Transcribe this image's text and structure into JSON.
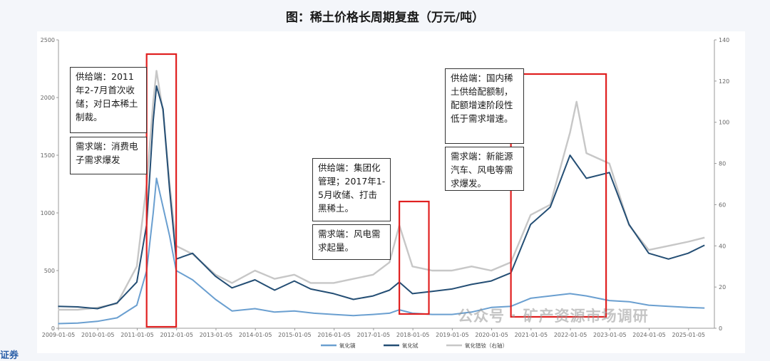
{
  "title": "图：稀土价格长周期复盘（万元/吨）",
  "watermark": "公众号 · 矿产资源市场调研",
  "edge_text": "证券",
  "annotations": [
    {
      "supply": "供给端：2011年2-7月首次收储；对日本稀土制裁。",
      "demand": "需求端：消费电子需求爆发"
    },
    {
      "supply": "供给端：集团化管理；2017年1-5月收储、打击黑稀土。",
      "demand": "需求端：风电需求起量。"
    },
    {
      "supply": "供给端：国内稀土供给配额制，配额增速阶段性低于需求增速。",
      "demand": "需求端：新能源汽车、风电等需求爆发。"
    }
  ],
  "colors": {
    "highlight": "#e02020",
    "series_1": "#6a9fd0",
    "series_2": "#244e74",
    "series_3": "#c7c7c7"
  },
  "chart_data": {
    "type": "line",
    "x_start": "2009-01-05",
    "x_ticks": [
      "2009-01-05",
      "2010-01-05",
      "2011-01-05",
      "2012-01-05",
      "2013-01-05",
      "2014-01-05",
      "2015-01-05",
      "2016-01-05",
      "2017-01-05",
      "2018-01-05",
      "2019-01-05",
      "2020-01-05",
      "2021-01-05",
      "2022-01-05",
      "2023-01-05",
      "2024-01-05",
      "2025-01-05"
    ],
    "y_left": {
      "min": 0,
      "max": 2500,
      "ticks": [
        0,
        500,
        1000,
        1500,
        2000,
        2500
      ]
    },
    "y_right": {
      "min": 0,
      "max": 140,
      "ticks": [
        0,
        20,
        40,
        60,
        80,
        100,
        120,
        140
      ]
    },
    "highlight_periods": [
      [
        "2011-04",
        "2012-01"
      ],
      [
        "2017-09",
        "2018-06"
      ],
      [
        "2020-07",
        "2022-12"
      ]
    ],
    "series": [
      {
        "name": "氧化镝",
        "axis": "left",
        "points": [
          [
            "2009-01",
            40
          ],
          [
            "2009-07",
            45
          ],
          [
            "2010-01",
            60
          ],
          [
            "2010-07",
            90
          ],
          [
            "2011-01",
            200
          ],
          [
            "2011-04",
            500
          ],
          [
            "2011-06",
            1000
          ],
          [
            "2011-07",
            1300
          ],
          [
            "2011-09",
            1050
          ],
          [
            "2011-11",
            800
          ],
          [
            "2012-01",
            500
          ],
          [
            "2012-06",
            420
          ],
          [
            "2013-01",
            250
          ],
          [
            "2013-06",
            150
          ],
          [
            "2014-01",
            170
          ],
          [
            "2014-07",
            140
          ],
          [
            "2015-01",
            150
          ],
          [
            "2015-07",
            130
          ],
          [
            "2016-01",
            120
          ],
          [
            "2016-07",
            110
          ],
          [
            "2017-01",
            120
          ],
          [
            "2017-06",
            130
          ],
          [
            "2017-09",
            160
          ],
          [
            "2018-01",
            130
          ],
          [
            "2018-07",
            120
          ],
          [
            "2019-01",
            120
          ],
          [
            "2019-07",
            140
          ],
          [
            "2020-01",
            180
          ],
          [
            "2020-07",
            190
          ],
          [
            "2021-01",
            260
          ],
          [
            "2021-07",
            280
          ],
          [
            "2022-01",
            300
          ],
          [
            "2022-06",
            280
          ],
          [
            "2023-01",
            240
          ],
          [
            "2023-07",
            230
          ],
          [
            "2024-01",
            200
          ],
          [
            "2024-07",
            190
          ],
          [
            "2025-01",
            180
          ],
          [
            "2025-06",
            175
          ]
        ]
      },
      {
        "name": "氧化铽",
        "axis": "left",
        "points": [
          [
            "2009-01",
            190
          ],
          [
            "2009-07",
            185
          ],
          [
            "2010-01",
            170
          ],
          [
            "2010-07",
            220
          ],
          [
            "2011-01",
            400
          ],
          [
            "2011-04",
            900
          ],
          [
            "2011-06",
            1800
          ],
          [
            "2011-07",
            2100
          ],
          [
            "2011-09",
            1900
          ],
          [
            "2011-11",
            1200
          ],
          [
            "2012-01",
            600
          ],
          [
            "2012-06",
            650
          ],
          [
            "2013-01",
            450
          ],
          [
            "2013-06",
            350
          ],
          [
            "2014-01",
            420
          ],
          [
            "2014-07",
            330
          ],
          [
            "2015-01",
            410
          ],
          [
            "2015-06",
            340
          ],
          [
            "2016-01",
            300
          ],
          [
            "2016-07",
            250
          ],
          [
            "2017-01",
            280
          ],
          [
            "2017-06",
            330
          ],
          [
            "2017-09",
            400
          ],
          [
            "2018-01",
            300
          ],
          [
            "2018-07",
            320
          ],
          [
            "2019-01",
            340
          ],
          [
            "2019-07",
            380
          ],
          [
            "2020-01",
            410
          ],
          [
            "2020-07",
            480
          ],
          [
            "2021-01",
            900
          ],
          [
            "2021-07",
            1050
          ],
          [
            "2022-01",
            1500
          ],
          [
            "2022-06",
            1300
          ],
          [
            "2023-01",
            1350
          ],
          [
            "2023-07",
            900
          ],
          [
            "2024-01",
            650
          ],
          [
            "2024-07",
            600
          ],
          [
            "2025-01",
            650
          ],
          [
            "2025-06",
            720
          ]
        ]
      },
      {
        "name": "氧化镨钕（右轴）",
        "axis": "right",
        "points": [
          [
            "2009-01",
            9
          ],
          [
            "2009-07",
            9
          ],
          [
            "2010-01",
            10
          ],
          [
            "2010-07",
            12
          ],
          [
            "2011-01",
            30
          ],
          [
            "2011-04",
            70
          ],
          [
            "2011-06",
            110
          ],
          [
            "2011-07",
            125
          ],
          [
            "2011-09",
            105
          ],
          [
            "2011-11",
            70
          ],
          [
            "2012-01",
            40
          ],
          [
            "2012-06",
            36
          ],
          [
            "2013-01",
            26
          ],
          [
            "2013-06",
            22
          ],
          [
            "2014-01",
            28
          ],
          [
            "2014-07",
            24
          ],
          [
            "2015-01",
            26
          ],
          [
            "2015-06",
            22
          ],
          [
            "2016-01",
            22
          ],
          [
            "2016-07",
            24
          ],
          [
            "2017-01",
            26
          ],
          [
            "2017-06",
            32
          ],
          [
            "2017-09",
            50
          ],
          [
            "2018-01",
            30
          ],
          [
            "2018-07",
            28
          ],
          [
            "2019-01",
            28
          ],
          [
            "2019-07",
            30
          ],
          [
            "2020-01",
            28
          ],
          [
            "2020-07",
            32
          ],
          [
            "2021-01",
            55
          ],
          [
            "2021-07",
            60
          ],
          [
            "2022-01",
            95
          ],
          [
            "2022-03",
            110
          ],
          [
            "2022-06",
            85
          ],
          [
            "2023-01",
            80
          ],
          [
            "2023-07",
            50
          ],
          [
            "2024-01",
            38
          ],
          [
            "2024-07",
            40
          ],
          [
            "2025-01",
            42
          ],
          [
            "2025-06",
            44
          ]
        ]
      }
    ]
  }
}
